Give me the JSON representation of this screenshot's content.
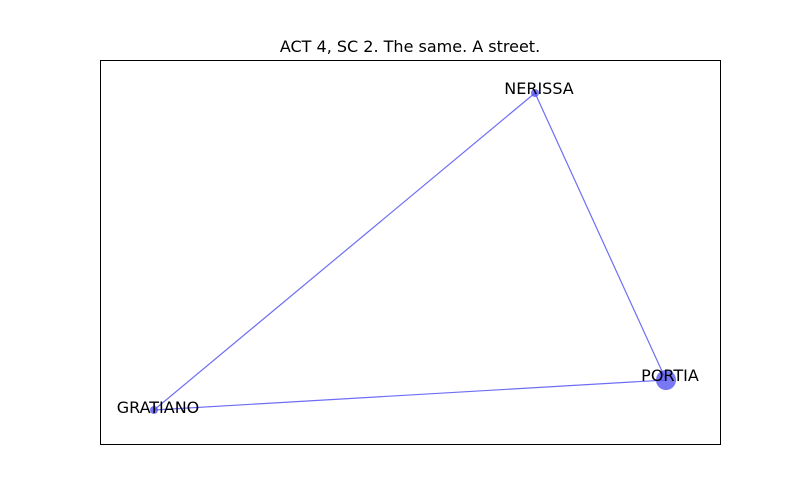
{
  "title": "ACT 4, SC 2. The same. A street.",
  "colors": {
    "edge": "#6e6ef5",
    "node": "#4b4bf0",
    "frame": "#000000",
    "background": "#ffffff"
  },
  "graph": {
    "nodes": [
      {
        "id": "nerissa",
        "label": "NERISSA",
        "weight": 1
      },
      {
        "id": "portia",
        "label": "PORTIA",
        "weight": 3
      },
      {
        "id": "gratiano",
        "label": "GRATIANO",
        "weight": 1
      }
    ],
    "edges": [
      {
        "source": "nerissa",
        "target": "portia"
      },
      {
        "source": "nerissa",
        "target": "gratiano"
      },
      {
        "source": "gratiano",
        "target": "portia"
      }
    ]
  }
}
